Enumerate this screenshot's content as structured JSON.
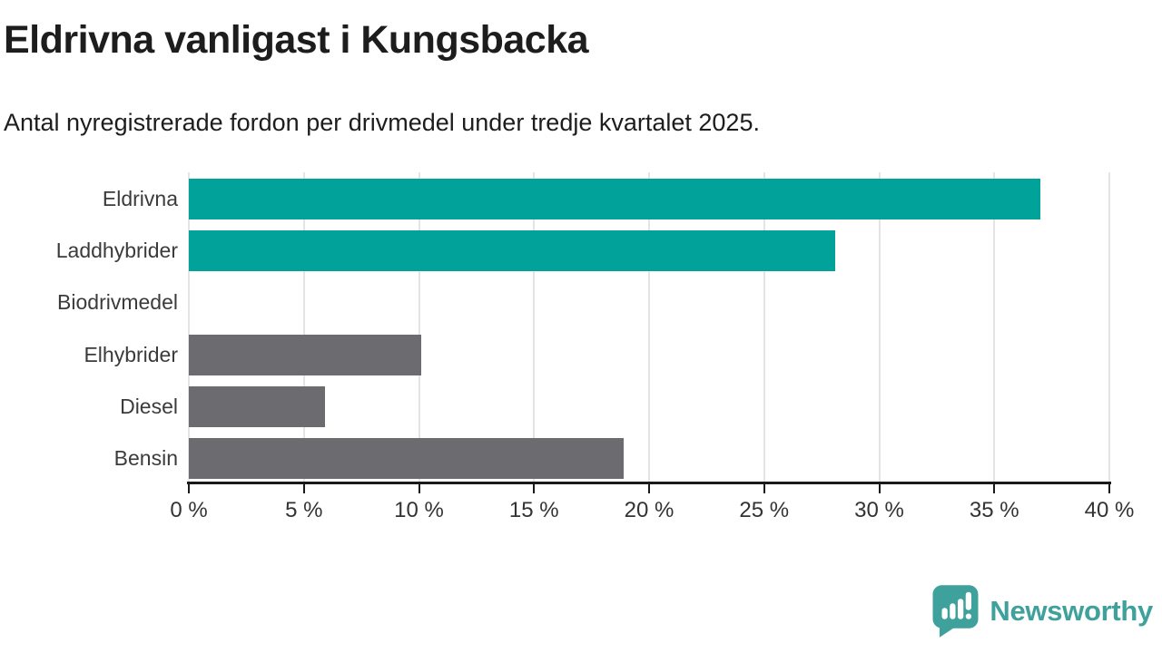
{
  "header": {
    "title": "Eldrivna vanligast i Kungsbacka",
    "subtitle": "Antal nyregistrerade fordon per drivmedel under tredje kvartalet 2025."
  },
  "chart_data": {
    "type": "bar",
    "orientation": "horizontal",
    "title": "Eldrivna vanligast i Kungsbacka",
    "subtitle": "Antal nyregistrerade fordon per drivmedel under tredje kvartalet 2025.",
    "categories": [
      "Eldrivna",
      "Laddhybrider",
      "Biodrivmedel",
      "Elhybrider",
      "Diesel",
      "Bensin"
    ],
    "values": [
      37.0,
      28.1,
      0,
      10.1,
      5.9,
      18.9
    ],
    "unit": "%",
    "bar_colors": [
      "#00a29a",
      "#00a29a",
      "#6b6b70",
      "#6b6b70",
      "#6b6b70",
      "#6b6b70"
    ],
    "xlabel": "",
    "ylabel": "",
    "xlim": [
      0,
      40
    ],
    "x_tick_values": [
      0,
      5,
      10,
      15,
      20,
      25,
      30,
      35,
      40
    ],
    "x_tick_labels": [
      "0 %",
      "5 %",
      "10 %",
      "15 %",
      "20 %",
      "25 %",
      "30 %",
      "35 %",
      "40 %"
    ],
    "grid": true,
    "legend": false
  },
  "branding": {
    "logo_text": "Newsworthy",
    "logo_color": "#3fa19b"
  },
  "colors": {
    "accent_teal": "#00a29a",
    "neutral_gray": "#6b6b70",
    "gridline": "#e4e4e4",
    "axis": "#1a1a1a",
    "text_dark": "#1d1d1d",
    "label_gray": "#3b3b3b"
  }
}
